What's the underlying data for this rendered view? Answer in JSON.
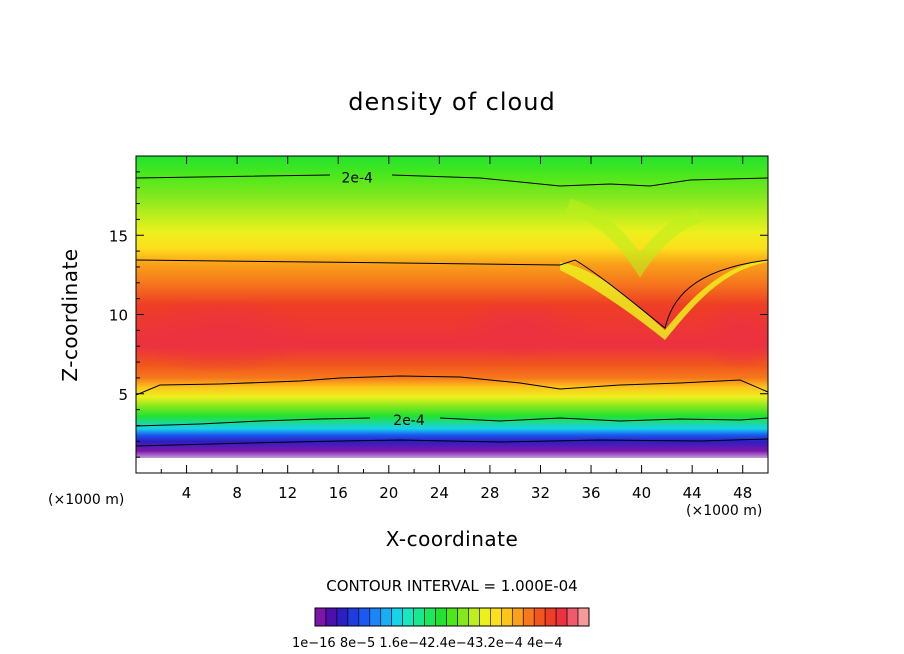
{
  "chart_data": {
    "type": "heatmap",
    "title": "density of cloud",
    "xlabel": "X-coordinate",
    "ylabel": "Z-coordinate",
    "x_unit_label": "(×1000 m)",
    "xlim": [
      0,
      50
    ],
    "ylim": [
      0,
      20
    ],
    "xticks": [
      4,
      8,
      12,
      16,
      20,
      24,
      28,
      32,
      36,
      40,
      44,
      48
    ],
    "yticks": [
      5,
      10,
      15
    ],
    "contour_interval_text": "CONTOUR INTERVAL = 1.000E-04",
    "contour_labels": [
      {
        "text": "2e-4",
        "x": 17.5,
        "z": 18.7
      },
      {
        "text": "2e-4",
        "x": 21.6,
        "z": 3.4
      }
    ],
    "colorbar": {
      "colors": [
        "#7b16a8",
        "#4d0fae",
        "#2c1ec4",
        "#1f3ddd",
        "#1a5af0",
        "#1c86f7",
        "#19aef4",
        "#16d3ea",
        "#16e8c4",
        "#19e892",
        "#1de85c",
        "#22e22f",
        "#4be81c",
        "#84e81e",
        "#bdef1d",
        "#ecf01d",
        "#fce01c",
        "#fcc51b",
        "#f9a11a",
        "#f6781b",
        "#f1561d",
        "#ee3e25",
        "#ec3140",
        "#ef5a6c",
        "#f7989b"
      ],
      "tick_labels": [
        "1e-16",
        "8e-5",
        "1.6e-4",
        "2.4e-4",
        "3.2e-4",
        "4e-4"
      ],
      "tick_label_text": "1e−16 8e−5 1.6e−42.4e−43.2e−4 4e−4"
    },
    "grid": false
  }
}
